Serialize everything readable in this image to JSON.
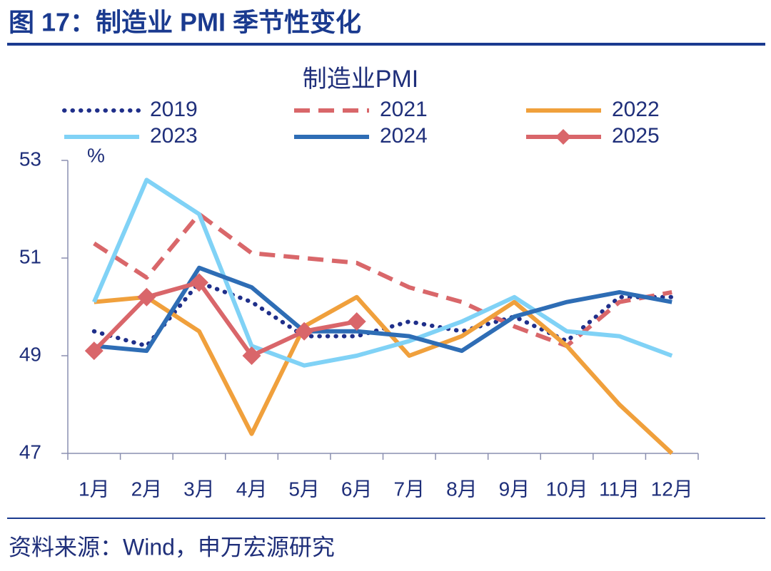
{
  "header": {
    "title": "图 17：制造业 PMI 季节性变化"
  },
  "chart_data": {
    "type": "line",
    "title": "制造业PMI",
    "y_unit": "%",
    "categories": [
      "1月",
      "2月",
      "3月",
      "4月",
      "5月",
      "6月",
      "7月",
      "8月",
      "9月",
      "10月",
      "11月",
      "12月"
    ],
    "ylim": [
      47,
      53
    ],
    "yticks": [
      47,
      49,
      51,
      53
    ],
    "series": [
      {
        "name": "2019",
        "color": "#1f2f8a",
        "style": "dotted",
        "values": [
          49.5,
          49.2,
          50.5,
          50.1,
          49.4,
          49.4,
          49.7,
          49.5,
          49.8,
          49.3,
          50.2,
          50.2
        ]
      },
      {
        "name": "2021",
        "color": "#d9676a",
        "style": "dashed",
        "values": [
          51.3,
          50.6,
          51.9,
          51.1,
          51.0,
          50.9,
          50.4,
          50.1,
          49.6,
          49.2,
          50.1,
          50.3
        ]
      },
      {
        "name": "2022",
        "color": "#f0a03c",
        "style": "solid",
        "values": [
          50.1,
          50.2,
          49.5,
          47.4,
          49.6,
          50.2,
          49.0,
          49.4,
          50.1,
          49.2,
          48.0,
          47.0
        ]
      },
      {
        "name": "2023",
        "color": "#80d2f6",
        "style": "solid",
        "values": [
          50.1,
          52.6,
          51.9,
          49.2,
          48.8,
          49.0,
          49.3,
          49.7,
          50.2,
          49.5,
          49.4,
          49.0
        ]
      },
      {
        "name": "2024",
        "color": "#2e6db5",
        "style": "solid",
        "values": [
          49.2,
          49.1,
          50.8,
          50.4,
          49.5,
          49.5,
          49.4,
          49.1,
          49.8,
          50.1,
          50.3,
          50.1
        ]
      },
      {
        "name": "2025",
        "color": "#d9666a",
        "style": "solid",
        "marker": "diamond",
        "values": [
          49.1,
          50.2,
          50.5,
          49.0,
          49.5,
          49.7,
          null,
          null,
          null,
          null,
          null,
          null
        ]
      }
    ]
  },
  "footer": {
    "source": "资料来源：Wind，申万宏源研究"
  }
}
